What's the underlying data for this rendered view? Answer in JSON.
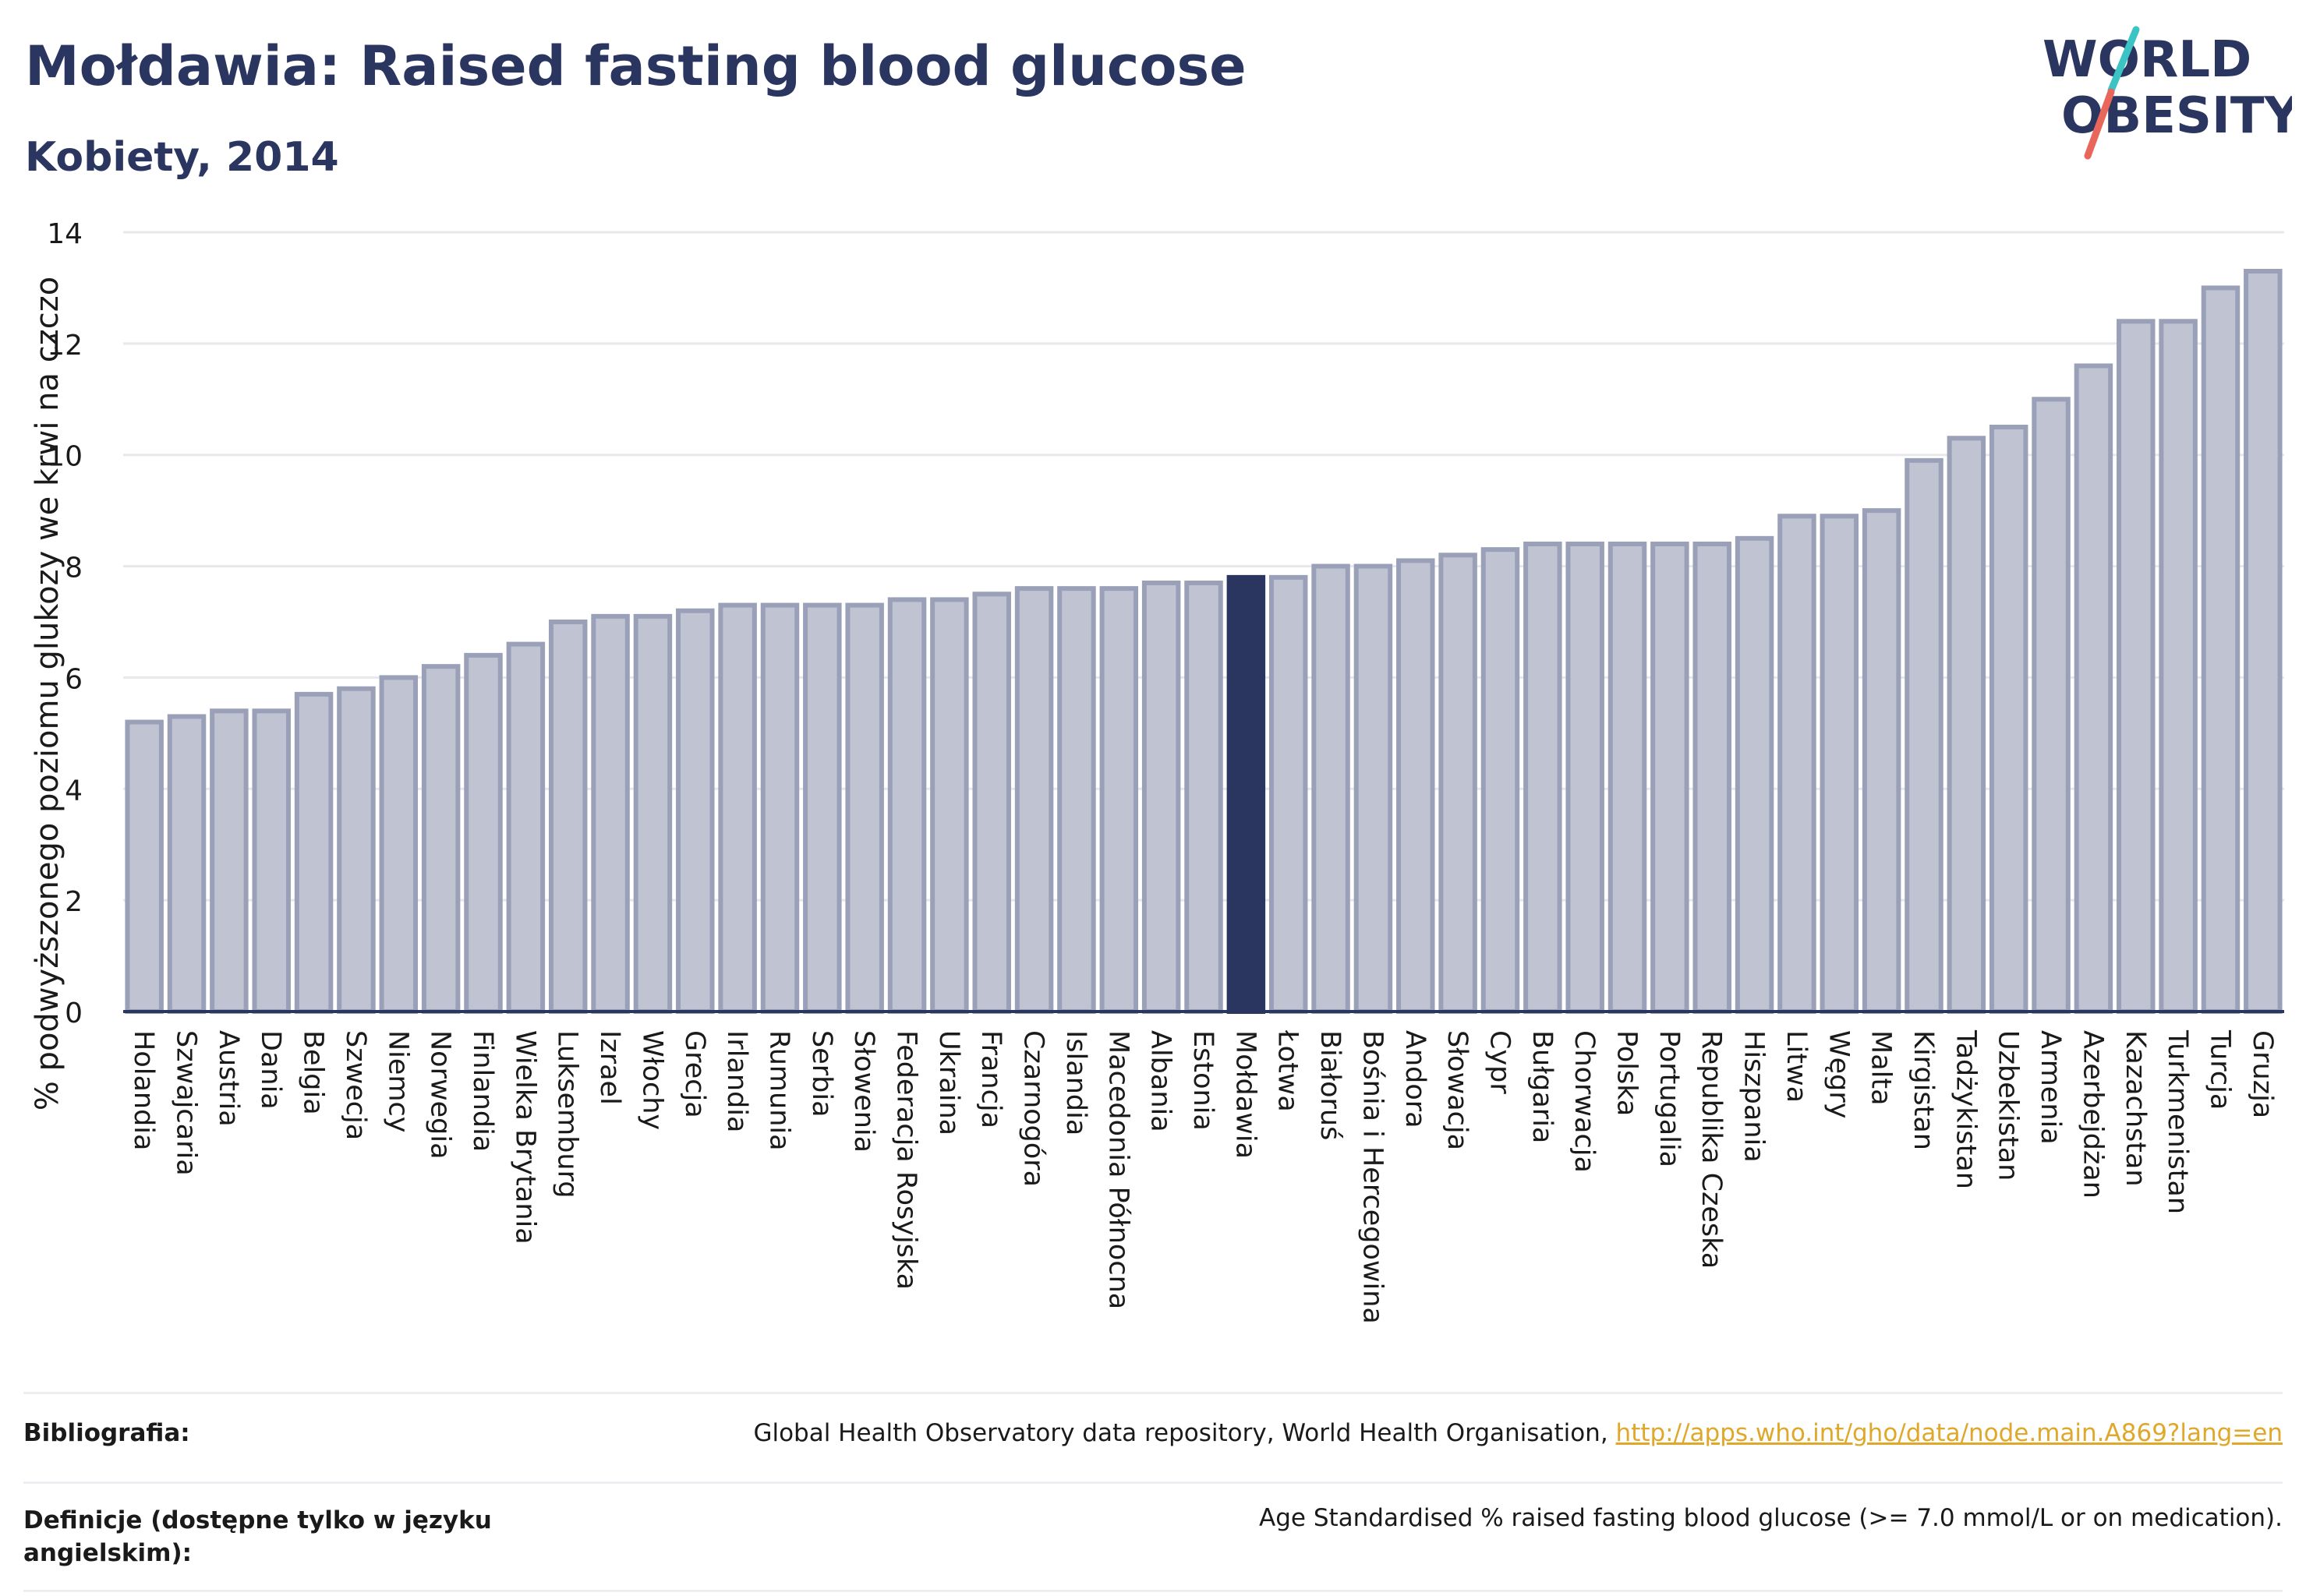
{
  "header": {
    "title": "Mołdawia: Raised fasting blood glucose",
    "subtitle": "Kobiety, 2014",
    "logo_line1": "WORLD",
    "logo_line2": "OBESITY"
  },
  "colors": {
    "bar": "#c0c3d2",
    "bar_stroke": "#9aa0b8",
    "highlight": "#2a3560",
    "axis_text": "#2a3560",
    "grid": "#e8e8ec",
    "logo_teal": "#3cc3c3",
    "logo_coral": "#e8665a"
  },
  "chart_data": {
    "type": "bar",
    "ylabel": "% podwyższonego poziomu glukozy we krwi na czczo",
    "ylim": [
      0,
      14
    ],
    "yticks": [
      0,
      2,
      4,
      6,
      8,
      10,
      12,
      14
    ],
    "grid": true,
    "highlight": "Mołdawia",
    "categories": [
      "Holandia",
      "Szwajcaria",
      "Austria",
      "Dania",
      "Belgia",
      "Szwecja",
      "Niemcy",
      "Norwegia",
      "Finlandia",
      "Wielka Brytania",
      "Luksemburg",
      "Izrael",
      "Włochy",
      "Grecja",
      "Irlandia",
      "Rumunia",
      "Serbia",
      "Słowenia",
      "Federacja Rosyjska",
      "Ukraina",
      "Francja",
      "Czarnogóra",
      "Islandia",
      "Macedonia Północna",
      "Albania",
      "Estonia",
      "Mołdawia",
      "Łotwa",
      "Białoruś",
      "Bośnia i Hercegowina",
      "Andora",
      "Słowacja",
      "Cypr",
      "Bułgaria",
      "Chorwacja",
      "Polska",
      "Portugalia",
      "Republika Czeska",
      "Hiszpania",
      "Litwa",
      "Węgry",
      "Malta",
      "Kirgistan",
      "Tadżykistan",
      "Uzbekistan",
      "Armenia",
      "Azerbejdżan",
      "Kazachstan",
      "Turkmenistan",
      "Turcja",
      "Gruzja"
    ],
    "values": [
      5.2,
      5.3,
      5.4,
      5.4,
      5.7,
      5.8,
      6.0,
      6.2,
      6.4,
      6.6,
      7.0,
      7.1,
      7.1,
      7.2,
      7.3,
      7.3,
      7.3,
      7.3,
      7.4,
      7.4,
      7.5,
      7.6,
      7.6,
      7.6,
      7.7,
      7.7,
      7.8,
      7.8,
      8.0,
      8.0,
      8.1,
      8.2,
      8.3,
      8.4,
      8.4,
      8.4,
      8.4,
      8.4,
      8.5,
      8.9,
      8.9,
      9.0,
      9.9,
      10.3,
      10.5,
      11.0,
      11.6,
      12.4,
      12.4,
      13.0,
      13.3
    ]
  },
  "footer": {
    "bibliography_label": "Bibliografia:",
    "bibliography_text": "Global Health Observatory data repository, World Health Organisation, ",
    "bibliography_link": "http://apps.who.int/gho/data/node.main.A869?lang=en",
    "definitions_label": "Definicje (dostępne tylko w języku angielskim):",
    "definitions_text": "Age Standardised % raised fasting blood glucose (>= 7.0 mmol/L or on medication)."
  }
}
